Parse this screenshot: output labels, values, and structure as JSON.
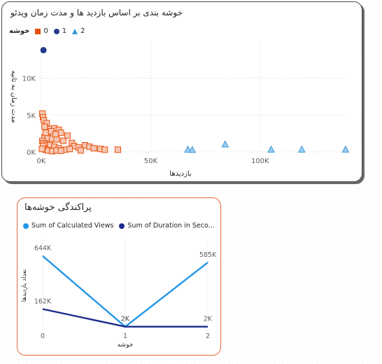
{
  "colors": {
    "cluster0": "#e8500a",
    "cluster1": "#243a8f",
    "cluster2": "#3a9ad9",
    "views": "#2196e8",
    "duration": "#1a2a8c",
    "accent_border": "#e8663a"
  },
  "visual1": {
    "title": "خوشه بندی بر اساس بازدید ها و مدت زمان ویدئو",
    "legend_title": "خوشه",
    "legend": [
      "0",
      "1",
      "2"
    ],
    "chart_data": {
      "type": "scatter",
      "xlabel": "بازدیدها",
      "ylabel": "مدت زمان به ثانیه",
      "xticks": [
        "0K",
        "50K",
        "100K"
      ],
      "yticks": [
        "0K",
        "5K",
        "10K"
      ],
      "xlim": [
        0,
        140000
      ],
      "ylim": [
        0,
        15000
      ],
      "series": [
        {
          "name": "0",
          "points": [
            [
              500,
              5200
            ],
            [
              800,
              4700
            ],
            [
              1200,
              4300
            ],
            [
              2500,
              3900
            ],
            [
              3500,
              3100
            ],
            [
              6000,
              3200
            ],
            [
              8000,
              3000
            ],
            [
              9000,
              2600
            ],
            [
              12000,
              2200
            ],
            [
              1500,
              2000
            ],
            [
              3000,
              1900
            ],
            [
              5000,
              1800
            ],
            [
              7000,
              1700
            ],
            [
              10000,
              1500
            ],
            [
              14000,
              1200
            ],
            [
              15000,
              800
            ],
            [
              17000,
              600
            ],
            [
              20000,
              900
            ],
            [
              22000,
              700
            ],
            [
              24000,
              500
            ],
            [
              27000,
              400
            ],
            [
              29000,
              300
            ],
            [
              35000,
              300
            ],
            [
              500,
              1500
            ],
            [
              1000,
              1200
            ],
            [
              2000,
              1000
            ],
            [
              4000,
              900
            ],
            [
              6000,
              700
            ],
            [
              8000,
              500
            ],
            [
              11000,
              300
            ],
            [
              13000,
              400
            ],
            [
              18000,
              200
            ],
            [
              1000,
              500
            ],
            [
              2000,
              300
            ],
            [
              3000,
              200
            ],
            [
              5000,
              100
            ],
            [
              7000,
              200
            ],
            [
              9000,
              150
            ],
            [
              1500,
              3400
            ],
            [
              4500,
              2800
            ],
            [
              6500,
              2400
            ],
            [
              2000,
              2600
            ],
            [
              800,
              800
            ],
            [
              300,
              400
            ]
          ]
        },
        {
          "name": "1",
          "points": [
            [
              1000,
              13800
            ]
          ]
        },
        {
          "name": "2",
          "points": [
            [
              67000,
              300
            ],
            [
              69000,
              250
            ],
            [
              84000,
              1000
            ],
            [
              105000,
              300
            ],
            [
              119000,
              300
            ],
            [
              139000,
              300
            ]
          ]
        }
      ]
    }
  },
  "visual2": {
    "title": "پراکندگی خوشه‌ها",
    "legend": [
      "Sum of Calculated Views",
      "Sum of Duration in Seco..."
    ],
    "chart_data": {
      "type": "line",
      "categories": [
        "0",
        "1",
        "2"
      ],
      "xlabel": "خوشه",
      "ylabel": "تعداد بازدیدها",
      "ylim": [
        0,
        750000
      ],
      "series": [
        {
          "name": "Sum of Calculated Views",
          "values": [
            644000,
            2000,
            585000
          ],
          "labels": [
            "644K",
            "2K",
            "585K"
          ]
        },
        {
          "name": "Sum of Duration in Seco...",
          "values": [
            162000,
            2000,
            2000
          ],
          "labels": [
            "162K",
            "2K",
            "2K"
          ]
        }
      ]
    }
  }
}
